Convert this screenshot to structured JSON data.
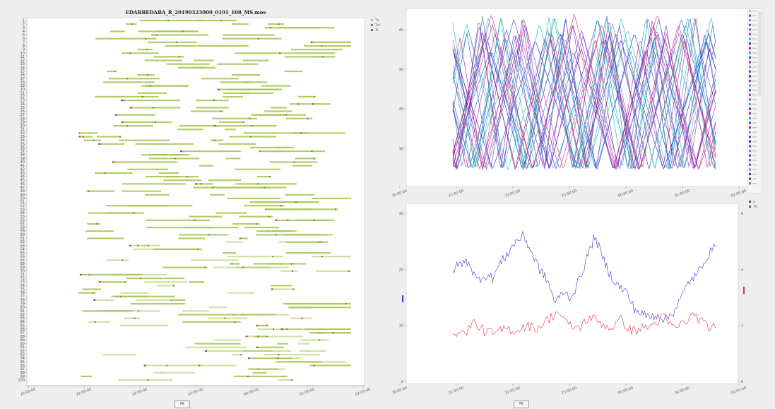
{
  "left_chart": {
    "title": "EDABBEDABA_R_20190323000_0101_108_MS.mos",
    "legend": [
      {
        "label": "Tx",
        "color": "#bbbbbb"
      },
      {
        "label": "Tm",
        "color": "#7a7a7a"
      },
      {
        "label": "Ts",
        "color": "#cc3366"
      }
    ],
    "x_ticks": [
      "20:00:00",
      "21:00:00",
      "22:00:00",
      "23:00:00",
      "00:00:00",
      "01:00:00",
      "02:00:00"
    ],
    "button_label": "Fit"
  },
  "right_top_chart": {
    "y_ticks": [
      "40",
      "30",
      "20",
      "10"
    ],
    "x_ticks": [
      "20:00:00",
      "21:00:00",
      "22:00:00",
      "23:00:00",
      "00:00:00",
      "01:00:00",
      "02:00:00"
    ]
  },
  "right_bottom_chart": {
    "y_ticks_left": [
      "30",
      "20",
      "10",
      "0"
    ],
    "y_ticks_right": [
      "6",
      "4",
      "2",
      "0"
    ],
    "x_ticks": [
      "20:00:00",
      "21:00:00",
      "22:00:00",
      "23:00:00",
      "00:00:00",
      "01:00:00",
      "02:00:00"
    ],
    "legend": [
      {
        "label": "a",
        "color": "#4444cc"
      },
      {
        "label": "Tfl",
        "color": "#cc3344"
      }
    ],
    "button_label": "Fit"
  },
  "colors": {
    "bar": "#a8c85a",
    "bar_dark": "#6e8c2a",
    "ts_mark": "#cc3366",
    "blue_series": "#3b3bd0",
    "red_series": "#e0333d"
  },
  "chart_data": [
    {
      "type": "bar",
      "title": "EDABBEDABA_R_20190323000_0101_108_MS.mos",
      "legend": [
        "Tx",
        "Tm",
        "Ts"
      ],
      "x_ticks": [
        "20:00:00",
        "21:00:00",
        "22:00:00",
        "23:00:00",
        "00:00:00",
        "01:00:00",
        "02:00:00"
      ],
      "rows": 100
    },
    {
      "type": "line",
      "y_ticks": [
        10,
        20,
        30,
        40
      ],
      "x_ticks": [
        "20:00:00",
        "21:00:00",
        "22:00:00",
        "23:00:00",
        "00:00:00",
        "01:00:00",
        "02:00:00"
      ],
      "ylim": [
        5,
        42
      ],
      "series_count": 28
    },
    {
      "type": "line",
      "x_ticks": [
        "20:00:00",
        "21:00:00",
        "22:00:00",
        "23:00:00",
        "00:00:00",
        "01:00:00",
        "02:00:00"
      ],
      "ylim_left": [
        0,
        30
      ],
      "ylim_right": [
        0,
        6
      ],
      "series": [
        {
          "name": "a",
          "axis": "left",
          "x": [
            0,
            3,
            6,
            9,
            12,
            15,
            18,
            21,
            24,
            27,
            30,
            33,
            36,
            39,
            42,
            45,
            48,
            51,
            54,
            57,
            60,
            63,
            66,
            69,
            72,
            75,
            78,
            81,
            84,
            87,
            90,
            93,
            96,
            100
          ],
          "values": [
            20,
            21,
            21.5,
            18,
            19,
            18.5,
            21,
            23,
            25,
            26,
            23,
            20,
            18,
            14,
            16,
            15,
            18,
            22,
            26,
            22,
            19,
            17,
            16,
            13,
            12,
            11.5,
            12,
            11,
            12.5,
            15,
            18,
            19,
            22,
            24
          ]
        },
        {
          "name": "Tfl",
          "axis": "right",
          "x": [
            0,
            4,
            8,
            12,
            16,
            20,
            24,
            28,
            32,
            36,
            40,
            44,
            48,
            52,
            56,
            60,
            64,
            68,
            72,
            76,
            80,
            84,
            88,
            92,
            96,
            100
          ],
          "values": [
            1.8,
            1.7,
            2.1,
            1.8,
            1.7,
            1.9,
            1.8,
            2.0,
            1.9,
            2.2,
            2.5,
            2.0,
            1.9,
            2.3,
            2.1,
            1.9,
            2.2,
            1.8,
            1.9,
            2.0,
            2.3,
            1.9,
            2.1,
            2.4,
            2.0,
            1.9
          ]
        }
      ]
    }
  ]
}
